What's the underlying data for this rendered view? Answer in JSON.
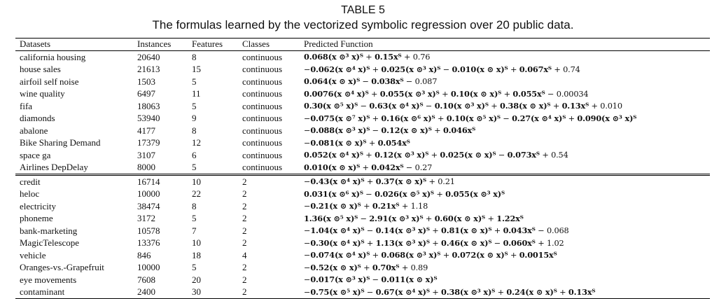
{
  "caption": {
    "label": "TABLE 5",
    "title": "The formulas learned by the vectorized symbolic regression over 20 public data."
  },
  "table": {
    "headers": [
      "Datasets",
      "Instances",
      "Features",
      "Classes",
      "Predicted Function"
    ],
    "group1": [
      [
        "california housing",
        "20640",
        "8",
        "continuous",
        "0.068(x ⊙³ x)ᵀ + 0.15xᵀ + 0.76"
      ],
      [
        "house sales",
        "21613",
        "15",
        "continuous",
        "−0.062(x ⊙⁴ x)ᵀ + 0.025(x ⊙³ x)ᵀ − 0.010(x ⊙ x)ᵀ + 0.067xᵀ + 0.74"
      ],
      [
        "airfoil self noise",
        "1503",
        "5",
        "continuous",
        "0.064(x ⊙ x)ᵀ − 0.038xᵀ − 0.087"
      ],
      [
        "wine quality",
        "6497",
        "11",
        "continuous",
        "0.0076(x ⊙⁴ x)ᵀ + 0.055(x ⊙³ x)ᵀ + 0.10(x ⊙ x)ᵀ + 0.055xᵀ − 0.00034"
      ],
      [
        "fifa",
        "18063",
        "5",
        "continuous",
        "0.30(x ⊙⁵ x)ᵀ − 0.63(x ⊙⁴ x)ᵀ − 0.10(x ⊙³ x)ᵀ + 0.38(x ⊙ x)ᵀ + 0.13xᵀ + 0.010"
      ],
      [
        "diamonds",
        "53940",
        "9",
        "continuous",
        "−0.075(x ⊙⁷ x)ᵀ + 0.16(x ⊙⁶ x)ᵀ + 0.10(x ⊙⁵ x)ᵀ − 0.27(x ⊙⁴ x)ᵀ + 0.090(x ⊙³ x)ᵀ"
      ],
      [
        "abalone",
        "4177",
        "8",
        "continuous",
        "−0.088(x ⊙³ x)ᵀ − 0.12(x ⊙ x)ᵀ + 0.046xᵀ"
      ],
      [
        "Bike Sharing Demand",
        "17379",
        "12",
        "continuous",
        "−0.081(x ⊙ x)ᵀ + 0.054xᵀ"
      ],
      [
        "space ga",
        "3107",
        "6",
        "continuous",
        "0.052(x ⊙⁴ x)ᵀ + 0.12(x ⊙³ x)ᵀ + 0.025(x ⊙ x)ᵀ − 0.073xᵀ + 0.54"
      ],
      [
        "Airlines DepDelay",
        "8000",
        "5",
        "continuous",
        "0.010(x ⊙ x)ᵀ + 0.042xᵀ − 0.27"
      ]
    ],
    "group2": [
      [
        "credit",
        "16714",
        "10",
        "2",
        "−0.43(x ⊙⁴ x)ᵀ + 0.37(x ⊙ x)ᵀ + 0.21"
      ],
      [
        "heloc",
        "10000",
        "22",
        "2",
        "0.031(x ⊙⁶ x)ᵀ − 0.026(x ⊙⁵ x)ᵀ + 0.055(x ⊙³ x)ᵀ"
      ],
      [
        "electricity",
        "38474",
        "8",
        "2",
        "−0.21(x ⊙ x)ᵀ + 0.21xᵀ + 1.18"
      ],
      [
        "phoneme",
        "3172",
        "5",
        "2",
        "1.36(x ⊙⁵ x)ᵀ − 2.91(x ⊙³ x)ᵀ + 0.60(x ⊙ x)ᵀ + 1.22xᵀ"
      ],
      [
        "bank-marketing",
        "10578",
        "7",
        "2",
        "−1.04(x ⊙⁴ x)ᵀ − 0.14(x ⊙³ x)ᵀ + 0.81(x ⊙ x)ᵀ + 0.043xᵀ − 0.068"
      ],
      [
        "MagicTelescope",
        "13376",
        "10",
        "2",
        "−0.30(x ⊙⁴ x)ᵀ + 1.13(x ⊙³ x)ᵀ + 0.46(x ⊙ x)ᵀ − 0.060xᵀ + 1.02"
      ],
      [
        "vehicle",
        "846",
        "18",
        "4",
        "−0.074(x ⊙⁴ x)ᵀ + 0.068(x ⊙³ x)ᵀ + 0.072(x ⊙ x)ᵀ + 0.0015xᵀ"
      ],
      [
        "Oranges-vs.-Grapefruit",
        "10000",
        "5",
        "2",
        "−0.52(x ⊙ x)ᵀ + 0.70xᵀ + 0.89"
      ],
      [
        "eye movements",
        "7608",
        "20",
        "2",
        "−0.017(x ⊙³ x)ᵀ − 0.011(x ⊙ x)ᵀ"
      ],
      [
        "contaminant",
        "2400",
        "30",
        "2",
        "−0.75(x ⊙⁵ x)ᵀ − 0.67(x ⊙⁴ x)ᵀ + 0.38(x ⊙³ x)ᵀ + 0.24(x ⊙ x)ᵀ + 0.13xᵀ"
      ]
    ]
  }
}
